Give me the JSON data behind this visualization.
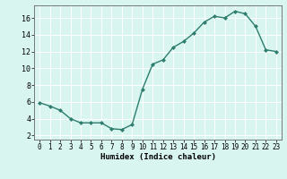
{
  "x": [
    0,
    1,
    2,
    3,
    4,
    5,
    6,
    7,
    8,
    9,
    10,
    11,
    12,
    13,
    14,
    15,
    16,
    17,
    18,
    19,
    20,
    21,
    22,
    23
  ],
  "y": [
    5.9,
    5.5,
    5.0,
    4.0,
    3.5,
    3.5,
    3.5,
    2.8,
    2.7,
    3.3,
    7.5,
    10.5,
    11.0,
    12.5,
    13.2,
    14.2,
    15.5,
    16.2,
    16.0,
    16.8,
    16.5,
    15.0,
    12.2,
    12.0
  ],
  "line_color": "#2e7d6e",
  "marker": "D",
  "marker_size": 2.0,
  "bg_color": "#d8f5f0",
  "grid_color": "#ffffff",
  "xlabel": "Humidex (Indice chaleur)",
  "ylim": [
    1.5,
    17.5
  ],
  "xlim": [
    -0.5,
    23.5
  ],
  "yticks": [
    2,
    4,
    6,
    8,
    10,
    12,
    14,
    16
  ],
  "xticks": [
    0,
    1,
    2,
    3,
    4,
    5,
    6,
    7,
    8,
    9,
    10,
    11,
    12,
    13,
    14,
    15,
    16,
    17,
    18,
    19,
    20,
    21,
    22,
    23
  ],
  "xtick_labels": [
    "0",
    "1",
    "2",
    "3",
    "4",
    "5",
    "6",
    "7",
    "8",
    "9",
    "10",
    "11",
    "12",
    "13",
    "14",
    "15",
    "16",
    "17",
    "18",
    "19",
    "20",
    "21",
    "22",
    "23"
  ],
  "line_width": 1.0,
  "tick_fontsize": 5.5,
  "xlabel_fontsize": 6.5,
  "ytick_fontsize": 6.0,
  "spine_color": "#666666"
}
